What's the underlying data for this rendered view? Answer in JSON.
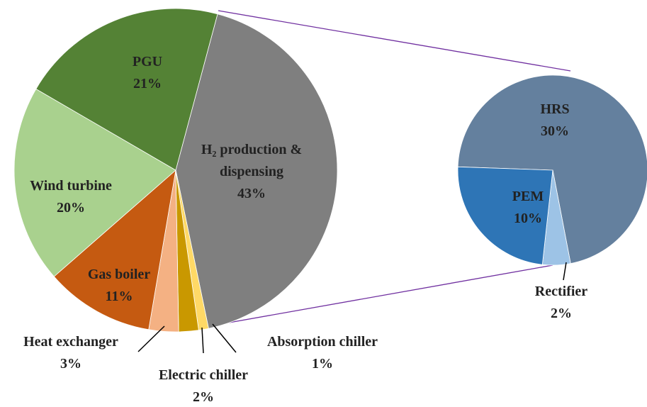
{
  "chart_data": [
    {
      "type": "pie",
      "categories": [
        "H₂ production & dispensing",
        "Absorption chiller",
        "Electric chiller",
        "Heat exchanger",
        "Gas boiler",
        "Wind turbine",
        "PGU"
      ],
      "values": [
        43,
        1,
        2,
        3,
        11,
        20,
        21
      ],
      "value_labels": [
        "43%",
        "1%",
        "2%",
        "3%",
        "11%",
        "20%",
        "21%"
      ],
      "colors": [
        "#7f7f7f",
        "#ffd966",
        "#c99800",
        "#f4b183",
        "#c55a11",
        "#a9d18e",
        "#548235"
      ]
    },
    {
      "type": "pie",
      "categories": [
        "HRS",
        "Rectifier",
        "PEM"
      ],
      "values": [
        30,
        2,
        10
      ],
      "value_labels": [
        "30%",
        "2%",
        "10%"
      ],
      "colors": [
        "#64809e",
        "#9dc3e6",
        "#2e75b6"
      ]
    }
  ]
}
